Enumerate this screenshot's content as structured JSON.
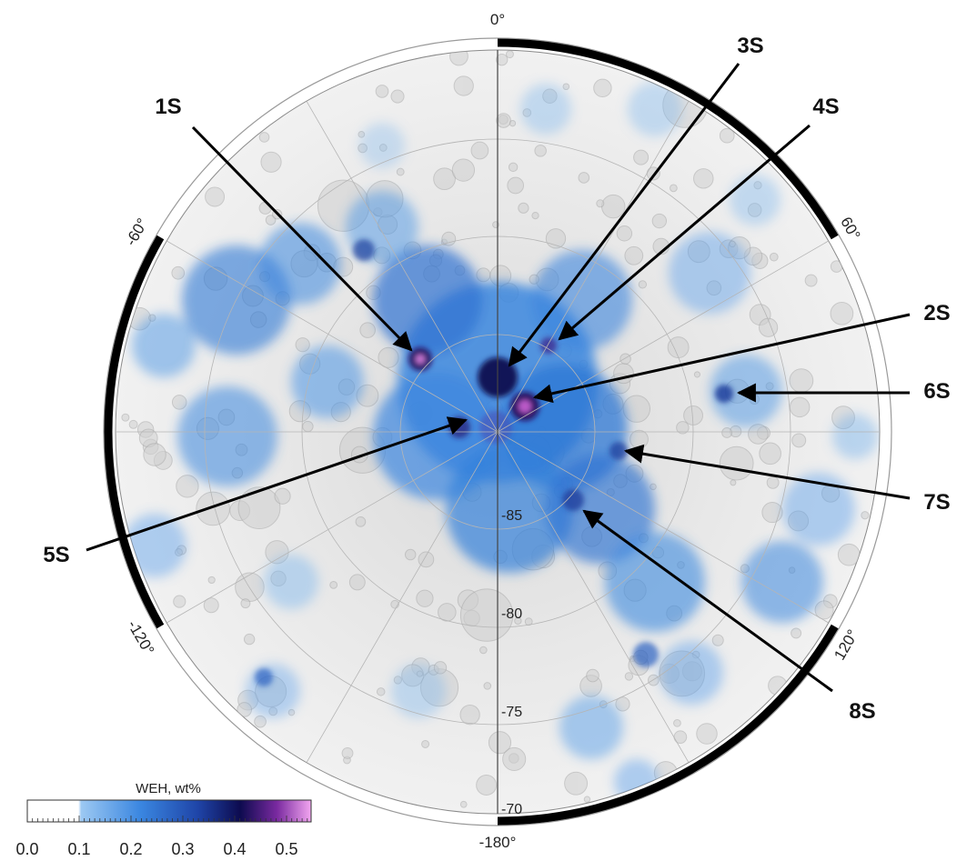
{
  "map": {
    "longitude_labels": {
      "top": "0°",
      "right_upper": "60°",
      "right_lower": "120°",
      "bottom": "-180°",
      "left_lower": "-120°",
      "left_upper": "-60°"
    },
    "latitude_labels": [
      "-85",
      "-80",
      "-75",
      "-70"
    ],
    "sites": [
      {
        "id": "1S",
        "label": "1S"
      },
      {
        "id": "2S",
        "label": "2S"
      },
      {
        "id": "3S",
        "label": "3S"
      },
      {
        "id": "4S",
        "label": "4S"
      },
      {
        "id": "5S",
        "label": "5S"
      },
      {
        "id": "6S",
        "label": "6S"
      },
      {
        "id": "7S",
        "label": "7S"
      },
      {
        "id": "8S",
        "label": "8S"
      }
    ]
  },
  "colorbar": {
    "title": "WEH, wt%",
    "ticks": [
      "0.0",
      "0.1",
      "0.2",
      "0.3",
      "0.4",
      "0.5"
    ],
    "colors": [
      "#ffffff",
      "#7fb6ee",
      "#2f78d6",
      "#1e3f9c",
      "#12105a",
      "#6b1f8c",
      "#e590e6"
    ]
  }
}
